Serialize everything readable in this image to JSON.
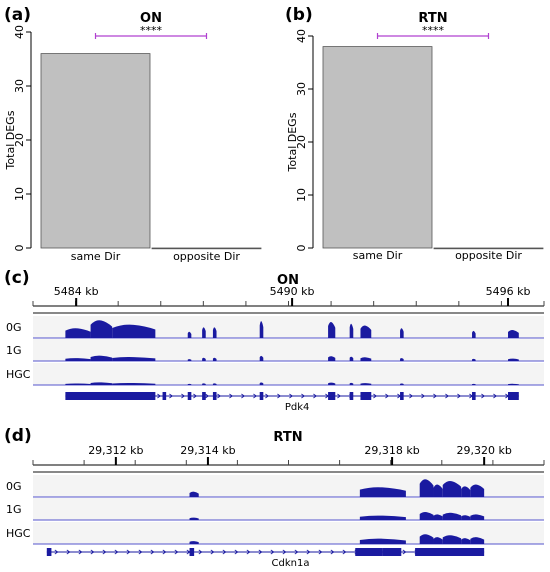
{
  "panels": {
    "a": "(a)",
    "b": "(b)",
    "c": "(c)",
    "d": "(d)"
  },
  "colors": {
    "bar": "#c0c0c0",
    "signal": "#1a1aa0",
    "baseline": "#5555cc",
    "sig_line": "#b040d0",
    "track_bg": "#f4f4f4"
  },
  "chart_data": [
    {
      "type": "bar",
      "title": "ON",
      "ylabel": "Total DEGs",
      "categories": [
        "same Dir",
        "opposite Dir"
      ],
      "values": [
        36,
        0
      ],
      "ylim": [
        0,
        40
      ],
      "yticks": [
        0,
        10,
        20,
        30,
        40
      ],
      "significance": "****"
    },
    {
      "type": "bar",
      "title": "RTN",
      "ylabel": "Total DEGs",
      "categories": [
        "same Dir",
        "opposite Dir"
      ],
      "values": [
        38,
        0
      ],
      "ylim": [
        0,
        40
      ],
      "yticks": [
        0,
        10,
        20,
        30,
        40
      ],
      "significance": "****"
    },
    {
      "type": "area",
      "title": "ON",
      "ruler_labels": [
        {
          "value": 5484,
          "text": "5484 kb"
        },
        {
          "value": 5490,
          "text": "5490 kb"
        },
        {
          "value": 5496,
          "text": "5496 kb"
        }
      ],
      "ruler_range_kb": [
        5482.8,
        5497.0
      ],
      "tracks": [
        "0G",
        "1G",
        "HGC"
      ],
      "gene": "Pdk4",
      "region_kb": [
        5483.7,
        5496.3
      ],
      "peaks_kb": [
        [
          5483.7,
          5484.4,
          0.55
        ],
        [
          5484.4,
          5485.0,
          1.0
        ],
        [
          5485.0,
          5486.2,
          0.75
        ],
        [
          5487.1,
          5487.2,
          0.35
        ],
        [
          5487.5,
          5487.6,
          0.6
        ],
        [
          5487.8,
          5487.9,
          0.6
        ],
        [
          5489.1,
          5489.2,
          0.95
        ],
        [
          5491.0,
          5491.2,
          0.9
        ],
        [
          5491.6,
          5491.7,
          0.8
        ],
        [
          5491.9,
          5492.2,
          0.7
        ],
        [
          5493.0,
          5493.1,
          0.55
        ],
        [
          5495.0,
          5495.1,
          0.4
        ],
        [
          5496.0,
          5496.3,
          0.45
        ]
      ],
      "track_scales": [
        1.0,
        0.3,
        0.15
      ],
      "exons_kb": [
        [
          5483.7,
          5486.2
        ],
        [
          5486.4,
          5486.5
        ],
        [
          5487.1,
          5487.2
        ],
        [
          5487.5,
          5487.6
        ],
        [
          5487.8,
          5487.9
        ],
        [
          5489.1,
          5489.2
        ],
        [
          5491.0,
          5491.2
        ],
        [
          5491.6,
          5491.7
        ],
        [
          5491.9,
          5492.2
        ],
        [
          5493.0,
          5493.1
        ],
        [
          5495.0,
          5495.1
        ],
        [
          5496.0,
          5496.3
        ]
      ]
    },
    {
      "type": "area",
      "title": "RTN",
      "ruler_labels": [
        {
          "value": 29312,
          "text": "29,312 kb"
        },
        {
          "value": 29314,
          "text": "29,314 kb"
        },
        {
          "value": 29318,
          "text": "29,318 kb"
        },
        {
          "value": 29320,
          "text": "29,320 kb"
        }
      ],
      "ruler_range_kb": [
        29310.2,
        29321.3
      ],
      "tracks": [
        "0G",
        "1G",
        "HGC"
      ],
      "gene": "Cdkn1a",
      "region_kb": [
        29310.5,
        29320.0
      ],
      "peaks_kb": [
        [
          29313.6,
          29313.8,
          0.3
        ],
        [
          29317.3,
          29318.3,
          0.55
        ],
        [
          29318.6,
          29318.9,
          1.0
        ],
        [
          29318.9,
          29319.1,
          0.7
        ],
        [
          29319.1,
          29319.5,
          0.9
        ],
        [
          29319.5,
          29319.7,
          0.6
        ],
        [
          29319.7,
          29320.0,
          0.7
        ]
      ],
      "track_scales": [
        1.0,
        0.45,
        0.55
      ],
      "exons_kb": [
        [
          29310.5,
          29310.6
        ],
        [
          29313.6,
          29313.7
        ],
        [
          29317.2,
          29317.8
        ],
        [
          29317.8,
          29318.2
        ],
        [
          29318.5,
          29320.0
        ]
      ]
    }
  ]
}
